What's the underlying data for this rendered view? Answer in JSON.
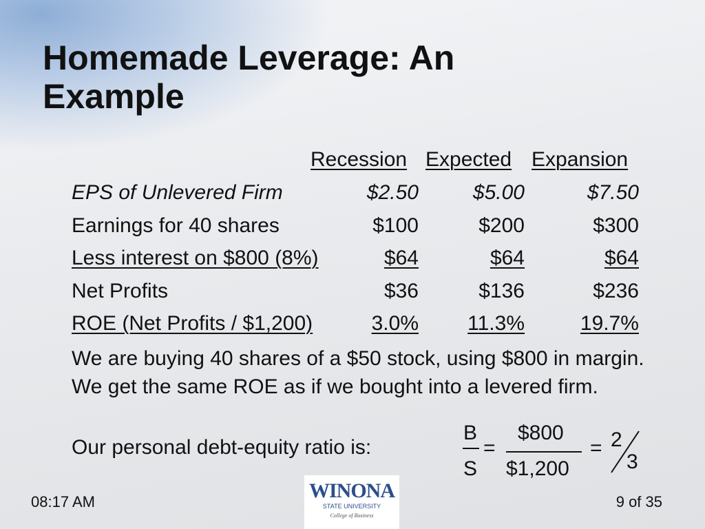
{
  "title": "Homemade Leverage: An Example",
  "table": {
    "header": [
      "Recession",
      "Expected",
      "Expansion"
    ],
    "rows": [
      [
        "EPS of Unlevered Firm",
        "$2.50",
        "$5.00",
        "$7.50"
      ],
      [
        "Earnings for 40 shares",
        "$100",
        "$200",
        "$300"
      ],
      [
        "Less interest on $800 (8%)",
        "$64",
        "$64",
        "$64"
      ],
      [
        "Net Profits",
        "$36",
        "$136",
        "$236"
      ],
      [
        "ROE (Net Profits / $1,200)",
        "3.0%",
        "11.3%",
        "19.7%"
      ]
    ]
  },
  "body": "We are buying 40 shares of a $50 stock, using $800 in margin. We get the same ROE as if we bought into a levered firm.",
  "ratio": {
    "label": "Our personal debt-equity ratio is:",
    "b": "B",
    "s": "S",
    "eq1": "=",
    "num": "$800",
    "den": "$1,200",
    "eq2": "=",
    "n": "2",
    "d": "3"
  },
  "footer": {
    "time": "08:17 AM",
    "page": "9 of 35",
    "logo": {
      "name": "WINONA",
      "sub": "STATE UNIVERSITY",
      "college": "College of Business"
    }
  }
}
